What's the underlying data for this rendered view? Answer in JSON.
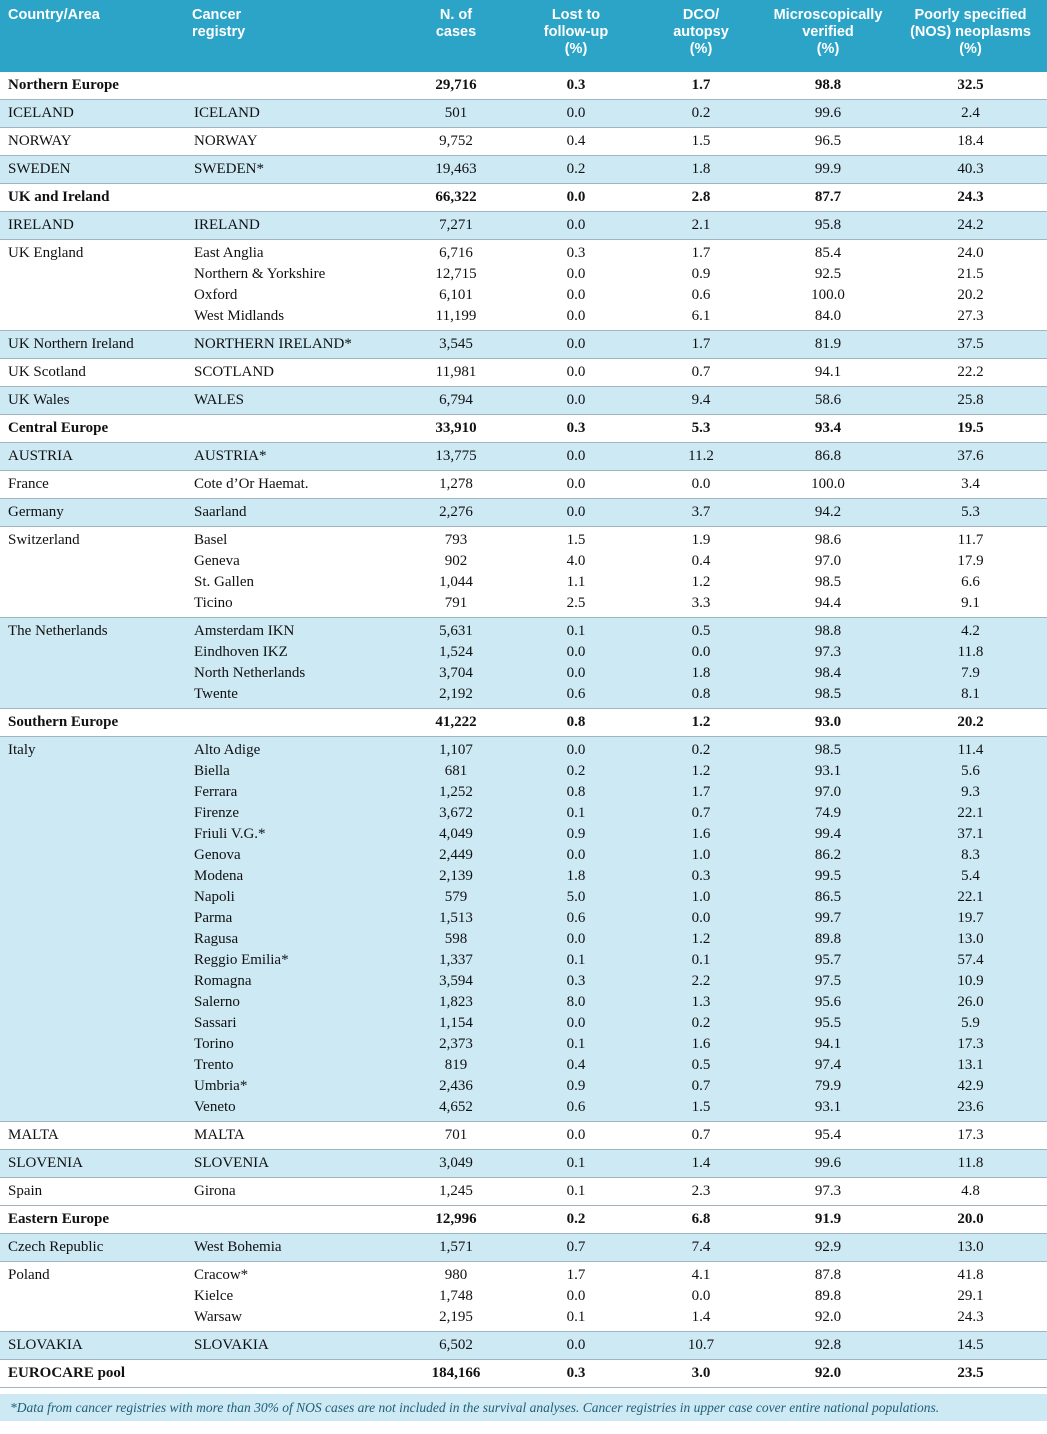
{
  "colors": {
    "header_bg": "#2ca4c8",
    "row_blue": "#cde9f4",
    "rule": "#9fb6c0",
    "footnote_text": "#1f5d77"
  },
  "table": {
    "columns": [
      {
        "label": "Country/Area",
        "align": "left"
      },
      {
        "label": "Cancer\nregistry",
        "align": "left"
      },
      {
        "label": "N. of\ncases",
        "align": "center"
      },
      {
        "label": "Lost to\nfollow-up\n(%)",
        "align": "center"
      },
      {
        "label": "DCO/\nautopsy\n(%)",
        "align": "center"
      },
      {
        "label": "Microscopically\nverified\n(%)",
        "align": "center"
      },
      {
        "label": "Poorly specified\n(NOS) neoplasms\n(%)",
        "align": "center"
      }
    ],
    "groups": [
      {
        "country": "Northern Europe",
        "bold": true,
        "shade": "white",
        "rows": [
          {
            "registry": "",
            "values": [
              "29,716",
              "0.3",
              "1.7",
              "98.8",
              "32.5"
            ]
          }
        ]
      },
      {
        "country": "ICELAND",
        "bold": false,
        "shade": "blue",
        "rows": [
          {
            "registry": "ICELAND",
            "values": [
              "501",
              "0.0",
              "0.2",
              "99.6",
              "2.4"
            ]
          }
        ]
      },
      {
        "country": "NORWAY",
        "bold": false,
        "shade": "white",
        "rows": [
          {
            "registry": "NORWAY",
            "values": [
              "9,752",
              "0.4",
              "1.5",
              "96.5",
              "18.4"
            ]
          }
        ]
      },
      {
        "country": "SWEDEN",
        "bold": false,
        "shade": "blue",
        "rows": [
          {
            "registry": "SWEDEN*",
            "values": [
              "19,463",
              "0.2",
              "1.8",
              "99.9",
              "40.3"
            ]
          }
        ]
      },
      {
        "country": "UK and Ireland",
        "bold": true,
        "shade": "white",
        "rows": [
          {
            "registry": "",
            "values": [
              "66,322",
              "0.0",
              "2.8",
              "87.7",
              "24.3"
            ]
          }
        ]
      },
      {
        "country": "IRELAND",
        "bold": false,
        "shade": "blue",
        "rows": [
          {
            "registry": "IRELAND",
            "values": [
              "7,271",
              "0.0",
              "2.1",
              "95.8",
              "24.2"
            ]
          }
        ]
      },
      {
        "country": "UK England",
        "bold": false,
        "shade": "white",
        "rows": [
          {
            "registry": "East Anglia",
            "values": [
              "6,716",
              "0.3",
              "1.7",
              "85.4",
              "24.0"
            ]
          },
          {
            "registry": "Northern & Yorkshire",
            "values": [
              "12,715",
              "0.0",
              "0.9",
              "92.5",
              "21.5"
            ]
          },
          {
            "registry": "Oxford",
            "values": [
              "6,101",
              "0.0",
              "0.6",
              "100.0",
              "20.2"
            ]
          },
          {
            "registry": "West Midlands",
            "values": [
              "11,199",
              "0.0",
              "6.1",
              "84.0",
              "27.3"
            ]
          }
        ]
      },
      {
        "country": "UK  Northern Ireland",
        "bold": false,
        "shade": "blue",
        "rows": [
          {
            "registry": "NORTHERN IRELAND*",
            "values": [
              "3,545",
              "0.0",
              "1.7",
              "81.9",
              "37.5"
            ]
          }
        ]
      },
      {
        "country": "UK Scotland",
        "bold": false,
        "shade": "white",
        "rows": [
          {
            "registry": "SCOTLAND",
            "values": [
              "11,981",
              "0.0",
              "0.7",
              "94.1",
              "22.2"
            ]
          }
        ]
      },
      {
        "country": "UK Wales",
        "bold": false,
        "shade": "blue",
        "rows": [
          {
            "registry": "WALES",
            "values": [
              "6,794",
              "0.0",
              "9.4",
              "58.6",
              "25.8"
            ]
          }
        ]
      },
      {
        "country": "Central Europe",
        "bold": true,
        "shade": "white",
        "rows": [
          {
            "registry": "",
            "values": [
              "33,910",
              "0.3",
              "5.3",
              "93.4",
              "19.5"
            ]
          }
        ]
      },
      {
        "country": "AUSTRIA",
        "bold": false,
        "shade": "blue",
        "rows": [
          {
            "registry": "AUSTRIA*",
            "values": [
              "13,775",
              "0.0",
              "11.2",
              "86.8",
              "37.6"
            ]
          }
        ]
      },
      {
        "country": "France",
        "bold": false,
        "shade": "white",
        "rows": [
          {
            "registry": "Cote d’Or Haemat.",
            "values": [
              "1,278",
              "0.0",
              "0.0",
              "100.0",
              "3.4"
            ]
          }
        ]
      },
      {
        "country": "Germany",
        "bold": false,
        "shade": "blue",
        "rows": [
          {
            "registry": "Saarland",
            "values": [
              "2,276",
              "0.0",
              "3.7",
              "94.2",
              "5.3"
            ]
          }
        ]
      },
      {
        "country": "Switzerland",
        "bold": false,
        "shade": "white",
        "rows": [
          {
            "registry": "Basel",
            "values": [
              "793",
              "1.5",
              "1.9",
              "98.6",
              "11.7"
            ]
          },
          {
            "registry": "Geneva",
            "values": [
              "902",
              "4.0",
              "0.4",
              "97.0",
              "17.9"
            ]
          },
          {
            "registry": "St. Gallen",
            "values": [
              "1,044",
              "1.1",
              "1.2",
              "98.5",
              "6.6"
            ]
          },
          {
            "registry": "Ticino",
            "values": [
              "791",
              "2.5",
              "3.3",
              "94.4",
              "9.1"
            ]
          }
        ]
      },
      {
        "country": "The Netherlands",
        "bold": false,
        "shade": "blue",
        "rows": [
          {
            "registry": "Amsterdam IKN",
            "values": [
              "5,631",
              "0.1",
              "0.5",
              "98.8",
              "4.2"
            ]
          },
          {
            "registry": "Eindhoven IKZ",
            "values": [
              "1,524",
              "0.0",
              "0.0",
              "97.3",
              "11.8"
            ]
          },
          {
            "registry": "North Netherlands",
            "values": [
              "3,704",
              "0.0",
              "1.8",
              "98.4",
              "7.9"
            ]
          },
          {
            "registry": "Twente",
            "values": [
              "2,192",
              "0.6",
              "0.8",
              "98.5",
              "8.1"
            ]
          }
        ]
      },
      {
        "country": "Southern Europe",
        "bold": true,
        "shade": "white",
        "rows": [
          {
            "registry": "",
            "values": [
              "41,222",
              "0.8",
              "1.2",
              "93.0",
              "20.2"
            ]
          }
        ]
      },
      {
        "country": "Italy",
        "bold": false,
        "shade": "blue",
        "rows": [
          {
            "registry": "Alto Adige",
            "values": [
              "1,107",
              "0.0",
              "0.2",
              "98.5",
              "11.4"
            ]
          },
          {
            "registry": "Biella",
            "values": [
              "681",
              "0.2",
              "1.2",
              "93.1",
              "5.6"
            ]
          },
          {
            "registry": "Ferrara",
            "values": [
              "1,252",
              "0.8",
              "1.7",
              "97.0",
              "9.3"
            ]
          },
          {
            "registry": "Firenze",
            "values": [
              "3,672",
              "0.1",
              "0.7",
              "74.9",
              "22.1"
            ]
          },
          {
            "registry": "Friuli V.G.*",
            "values": [
              "4,049",
              "0.9",
              "1.6",
              "99.4",
              "37.1"
            ]
          },
          {
            "registry": "Genova",
            "values": [
              "2,449",
              "0.0",
              "1.0",
              "86.2",
              "8.3"
            ]
          },
          {
            "registry": "Modena",
            "values": [
              "2,139",
              "1.8",
              "0.3",
              "99.5",
              "5.4"
            ]
          },
          {
            "registry": "Napoli",
            "values": [
              "579",
              "5.0",
              "1.0",
              "86.5",
              "22.1"
            ]
          },
          {
            "registry": "Parma",
            "values": [
              "1,513",
              "0.6",
              "0.0",
              "99.7",
              "19.7"
            ]
          },
          {
            "registry": "Ragusa",
            "values": [
              "598",
              "0.0",
              "1.2",
              "89.8",
              "13.0"
            ]
          },
          {
            "registry": "Reggio Emilia*",
            "values": [
              "1,337",
              "0.1",
              "0.1",
              "95.7",
              "57.4"
            ]
          },
          {
            "registry": "Romagna",
            "values": [
              "3,594",
              "0.3",
              "2.2",
              "97.5",
              "10.9"
            ]
          },
          {
            "registry": "Salerno",
            "values": [
              "1,823",
              "8.0",
              "1.3",
              "95.6",
              "26.0"
            ]
          },
          {
            "registry": "Sassari",
            "values": [
              "1,154",
              "0.0",
              "0.2",
              "95.5",
              "5.9"
            ]
          },
          {
            "registry": "Torino",
            "values": [
              "2,373",
              "0.1",
              "1.6",
              "94.1",
              "17.3"
            ]
          },
          {
            "registry": "Trento",
            "values": [
              "819",
              "0.4",
              "0.5",
              "97.4",
              "13.1"
            ]
          },
          {
            "registry": "Umbria*",
            "values": [
              "2,436",
              "0.9",
              "0.7",
              "79.9",
              "42.9"
            ]
          },
          {
            "registry": "Veneto",
            "values": [
              "4,652",
              "0.6",
              "1.5",
              "93.1",
              "23.6"
            ]
          }
        ]
      },
      {
        "country": "MALTA",
        "bold": false,
        "shade": "white",
        "rows": [
          {
            "registry": "MALTA",
            "values": [
              "701",
              "0.0",
              "0.7",
              "95.4",
              "17.3"
            ]
          }
        ]
      },
      {
        "country": "SLOVENIA",
        "bold": false,
        "shade": "blue",
        "rows": [
          {
            "registry": "SLOVENIA",
            "values": [
              "3,049",
              "0.1",
              "1.4",
              "99.6",
              "11.8"
            ]
          }
        ]
      },
      {
        "country": "Spain",
        "bold": false,
        "shade": "white",
        "rows": [
          {
            "registry": "Girona",
            "values": [
              "1,245",
              "0.1",
              "2.3",
              "97.3",
              "4.8"
            ]
          }
        ]
      },
      {
        "country": "Eastern Europe",
        "bold": true,
        "shade": "white",
        "rows": [
          {
            "registry": "",
            "values": [
              "12,996",
              "0.2",
              "6.8",
              "91.9",
              "20.0"
            ]
          }
        ]
      },
      {
        "country": "Czech Republic",
        "bold": false,
        "shade": "blue",
        "rows": [
          {
            "registry": "West Bohemia",
            "values": [
              "1,571",
              "0.7",
              "7.4",
              "92.9",
              "13.0"
            ]
          }
        ]
      },
      {
        "country": "Poland",
        "bold": false,
        "shade": "white",
        "rows": [
          {
            "registry": "Cracow*",
            "values": [
              "980",
              "1.7",
              "4.1",
              "87.8",
              "41.8"
            ]
          },
          {
            "registry": "Kielce",
            "values": [
              "1,748",
              "0.0",
              "0.0",
              "89.8",
              "29.1"
            ]
          },
          {
            "registry": "Warsaw",
            "values": [
              "2,195",
              "0.1",
              "1.4",
              "92.0",
              "24.3"
            ]
          }
        ]
      },
      {
        "country": "SLOVAKIA",
        "bold": false,
        "shade": "blue",
        "rows": [
          {
            "registry": "SLOVAKIA",
            "values": [
              "6,502",
              "0.0",
              "10.7",
              "92.8",
              "14.5"
            ]
          }
        ]
      },
      {
        "country": "EUROCARE pool",
        "bold": true,
        "shade": "white",
        "rows": [
          {
            "registry": "",
            "values": [
              "184,166",
              "0.3",
              "3.0",
              "92.0",
              "23.5"
            ]
          }
        ]
      }
    ],
    "footnote": "*Data from cancer registries with more than 30% of NOS cases are not included in the survival analyses. Cancer registries in upper case cover entire national populations."
  }
}
